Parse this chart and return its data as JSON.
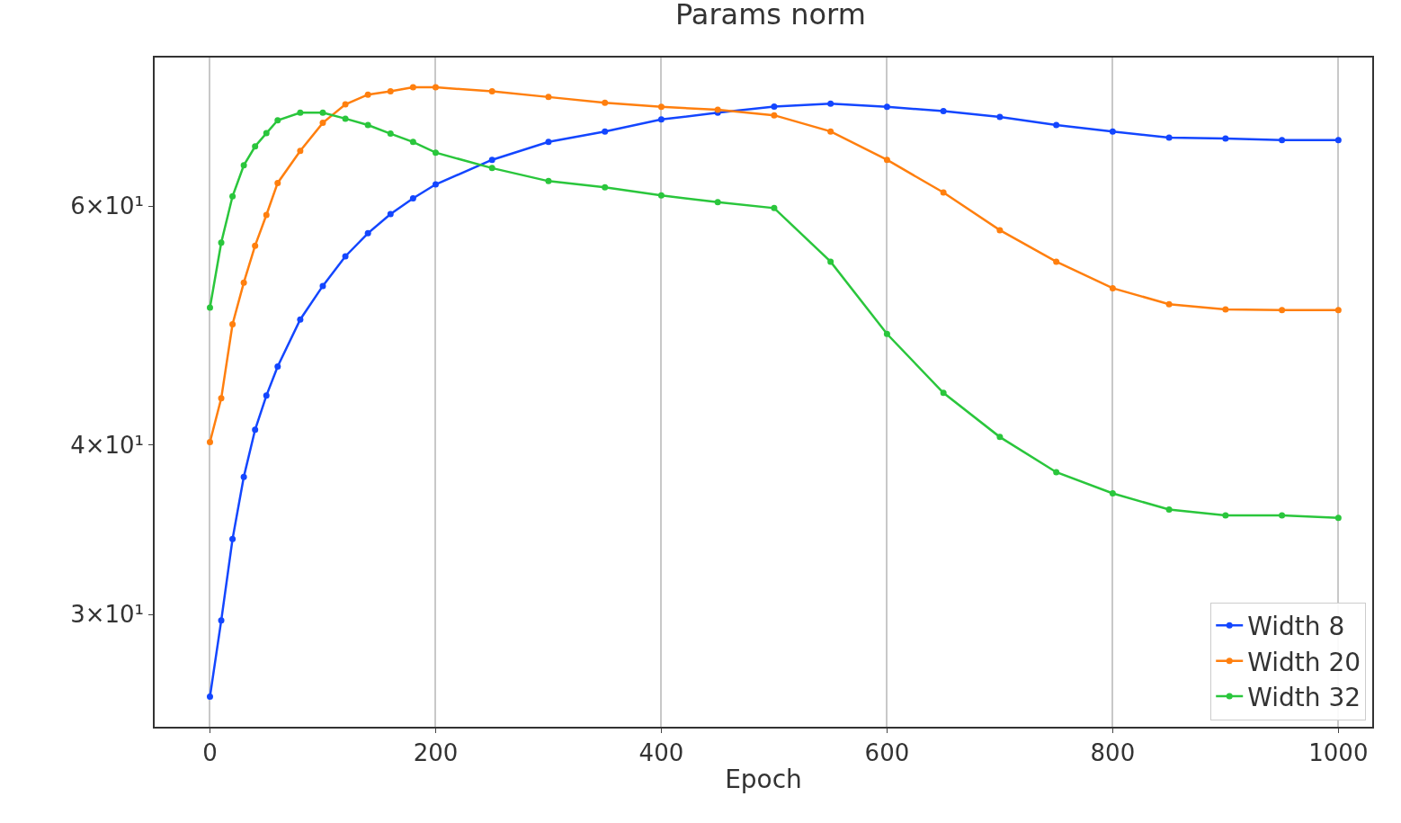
{
  "chart_data": {
    "type": "line",
    "title": "Params norm",
    "xlabel": "Epoch",
    "x": [
      0,
      10,
      20,
      30,
      40,
      50,
      60,
      80,
      100,
      120,
      140,
      160,
      180,
      200,
      250,
      300,
      350,
      400,
      450,
      500,
      550,
      600,
      650,
      700,
      750,
      800,
      850,
      900,
      950,
      1000
    ],
    "series": [
      {
        "name": "Width 8",
        "color": "#1346ff",
        "values": [
          26.1,
          29.7,
          34.1,
          37.9,
          41.05,
          43.5,
          45.7,
          49.5,
          52.4,
          55.1,
          57.3,
          59.2,
          60.8,
          62.25,
          64.9,
          66.9,
          68.1,
          69.5,
          70.3,
          71.05,
          71.4,
          71.0,
          70.5,
          69.8,
          68.85,
          68.1,
          67.4,
          67.3,
          67.1,
          67.1
        ]
      },
      {
        "name": "Width 20",
        "color": "#ff7f0e",
        "values": [
          40.2,
          43.3,
          49.1,
          52.7,
          56.1,
          59.1,
          62.4,
          65.9,
          69.1,
          71.3,
          72.5,
          72.9,
          73.4,
          73.4,
          72.9,
          72.2,
          71.5,
          71.0,
          70.65,
          70.0,
          68.1,
          64.9,
          61.4,
          57.6,
          54.6,
          52.2,
          50.8,
          50.35,
          50.3,
          50.3
        ]
      },
      {
        "name": "Width 32",
        "color": "#2ac63c",
        "values": [
          50.5,
          56.4,
          61.0,
          64.3,
          66.4,
          67.9,
          69.4,
          70.3,
          70.3,
          69.6,
          68.85,
          67.85,
          66.9,
          65.7,
          64.0,
          62.6,
          61.95,
          61.1,
          60.4,
          59.8,
          54.6,
          48.3,
          43.7,
          40.55,
          38.2,
          36.85,
          35.85,
          35.5,
          35.5,
          35.35
        ]
      }
    ],
    "log": "y",
    "xlim": [
      -49,
      1030
    ],
    "ylim": [
      24.8,
      77.2
    ],
    "xticks": [
      0,
      200,
      400,
      600,
      800,
      1000
    ],
    "yticks": [
      {
        "value": 30,
        "label": "3×10¹"
      },
      {
        "value": 40,
        "label": "4×10¹"
      },
      {
        "value": 60,
        "label": "6×10¹"
      }
    ],
    "grid": "x",
    "legend": "bottom right",
    "marker": "circle",
    "line_style": "solid"
  }
}
